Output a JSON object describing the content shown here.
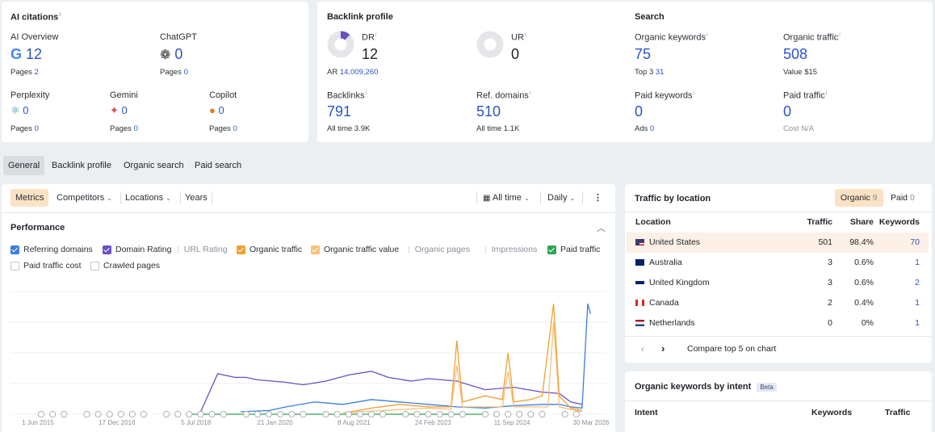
{
  "ai_citations": {
    "title": "AI citations",
    "ai_overview": {
      "label": "AI Overview",
      "value": "12",
      "sub_label": "Pages",
      "sub_value": "2"
    },
    "chatgpt": {
      "label": "ChatGPT",
      "value": "0",
      "sub_label": "Pages",
      "sub_value": "0"
    },
    "perplexity": {
      "label": "Perplexity",
      "value": "0",
      "sub_label": "Pages",
      "sub_value": "0"
    },
    "gemini": {
      "label": "Gemini",
      "value": "0",
      "sub_label": "Pages",
      "sub_value": "0"
    },
    "copilot": {
      "label": "Copilot",
      "value": "0",
      "sub_label": "Pages",
      "sub_value": "0"
    }
  },
  "backlink_profile": {
    "title": "Backlink profile",
    "dr": {
      "label": "DR",
      "value": "12",
      "sub_label": "AR",
      "sub_value": "14,009,260",
      "fill": 0.12
    },
    "ur": {
      "label": "UR",
      "value": "0",
      "fill": 0
    },
    "backlinks": {
      "label": "Backlinks",
      "value": "791",
      "sub_label": "All time",
      "sub_value": "3.9K"
    },
    "ref_domains": {
      "label": "Ref. domains",
      "value": "510",
      "sub_label": "All time",
      "sub_value": "1.1K"
    }
  },
  "search": {
    "title": "Search",
    "organic_keywords": {
      "label": "Organic keywords",
      "value": "75",
      "sub_label": "Top 3",
      "sub_value": "31"
    },
    "organic_traffic": {
      "label": "Organic traffic",
      "value": "508",
      "sub_label": "Value",
      "sub_value": "$15"
    },
    "paid_keywords": {
      "label": "Paid keywords",
      "value": "0",
      "sub_label": "Ads",
      "sub_value": "0"
    },
    "paid_traffic": {
      "label": "Paid traffic",
      "value": "0",
      "sub_label": "Cost",
      "sub_value": "N/A"
    }
  },
  "tabs": [
    "General",
    "Backlink profile",
    "Organic search",
    "Paid search"
  ],
  "toolbar": {
    "metrics": "Metrics",
    "competitors": "Competitors",
    "locations": "Locations",
    "years": "Years",
    "all_time": "All time",
    "daily": "Daily"
  },
  "performance": {
    "title": "Performance",
    "checkboxes": [
      {
        "label": "Referring domains",
        "checked": true,
        "color": "#3d7ee0"
      },
      {
        "label": "Domain Rating",
        "checked": true,
        "color": "#6a4fc4"
      },
      {
        "label": "URL Rating",
        "checked": false,
        "color": ""
      },
      {
        "label": "Organic traffic",
        "checked": true,
        "color": "#f0a030"
      },
      {
        "label": "Organic traffic value",
        "checked": true,
        "color": "#f5c07a"
      },
      {
        "label": "Organic pages",
        "checked": false,
        "color": ""
      },
      {
        "label": "Impressions",
        "checked": false,
        "color": ""
      },
      {
        "label": "Paid traffic",
        "checked": true,
        "color": "#2fa44f"
      },
      {
        "label": "Paid traffic cost",
        "checked": false,
        "color": ""
      },
      {
        "label": "Crawled pages",
        "checked": false,
        "color": ""
      }
    ]
  },
  "chart_data": {
    "type": "line",
    "x_ticks": [
      "1 Jun 2015",
      "17 Dec 2016",
      "5 Jul 2018",
      "21 Jan 2020",
      "8 Aug 2021",
      "24 Feb 2023",
      "11 Sep 2024",
      "30 Mar 2026"
    ],
    "series": [
      {
        "name": "Referring domains",
        "color": "#3d7ee0",
        "points": [
          [
            0.37,
            0.02
          ],
          [
            0.42,
            0.03
          ],
          [
            0.45,
            0.06
          ],
          [
            0.5,
            0.1
          ],
          [
            0.55,
            0.08
          ],
          [
            0.6,
            0.12
          ],
          [
            0.65,
            0.1
          ],
          [
            0.7,
            0.08
          ],
          [
            0.75,
            0.06
          ],
          [
            0.8,
            0.05
          ],
          [
            0.85,
            0.07
          ],
          [
            0.9,
            0.08
          ],
          [
            0.93,
            0.08
          ],
          [
            0.95,
            0.06
          ],
          [
            0.97,
            0.05
          ],
          [
            0.98,
            0.9
          ],
          [
            0.985,
            0.82
          ]
        ]
      },
      {
        "name": "Domain Rating",
        "color": "#6a4fc4",
        "points": [
          [
            0.3,
            0.02
          ],
          [
            0.33,
            0.33
          ],
          [
            0.36,
            0.3
          ],
          [
            0.38,
            0.3
          ],
          [
            0.4,
            0.28
          ],
          [
            0.45,
            0.26
          ],
          [
            0.48,
            0.24
          ],
          [
            0.52,
            0.27
          ],
          [
            0.56,
            0.32
          ],
          [
            0.6,
            0.35
          ],
          [
            0.63,
            0.3
          ],
          [
            0.67,
            0.27
          ],
          [
            0.7,
            0.29
          ],
          [
            0.75,
            0.27
          ],
          [
            0.8,
            0.2
          ],
          [
            0.85,
            0.22
          ],
          [
            0.9,
            0.18
          ],
          [
            0.93,
            0.17
          ],
          [
            0.95,
            0.1
          ],
          [
            0.97,
            0.08
          ]
        ]
      },
      {
        "name": "Organic traffic",
        "color": "#f0a030",
        "points": [
          [
            0.55,
            0.01
          ],
          [
            0.6,
            0.05
          ],
          [
            0.65,
            0.08
          ],
          [
            0.7,
            0.06
          ],
          [
            0.74,
            0.06
          ],
          [
            0.75,
            0.6
          ],
          [
            0.76,
            0.1
          ],
          [
            0.8,
            0.15
          ],
          [
            0.83,
            0.12
          ],
          [
            0.84,
            0.5
          ],
          [
            0.85,
            0.1
          ],
          [
            0.88,
            0.12
          ],
          [
            0.9,
            0.15
          ],
          [
            0.92,
            0.9
          ],
          [
            0.93,
            0.15
          ],
          [
            0.95,
            0.05
          ],
          [
            0.97,
            0.03
          ]
        ]
      },
      {
        "name": "Organic traffic value",
        "color": "#f5c07a",
        "points": [
          [
            0.55,
            0.01
          ],
          [
            0.62,
            0.03
          ],
          [
            0.7,
            0.05
          ],
          [
            0.74,
            0.04
          ],
          [
            0.75,
            0.4
          ],
          [
            0.76,
            0.06
          ],
          [
            0.83,
            0.06
          ],
          [
            0.84,
            0.35
          ],
          [
            0.85,
            0.06
          ],
          [
            0.91,
            0.06
          ],
          [
            0.92,
            0.75
          ],
          [
            0.93,
            0.06
          ],
          [
            0.97,
            0.02
          ]
        ]
      },
      {
        "name": "Paid traffic",
        "color": "#2fa44f",
        "points": [
          [
            0.28,
            0.0
          ],
          [
            0.8,
            0.0
          ]
        ]
      }
    ]
  },
  "traffic_by_location": {
    "title": "Traffic by location",
    "organic_label": "Organic",
    "organic_count": "9",
    "paid_label": "Paid",
    "paid_count": "0",
    "headers": [
      "Location",
      "Traffic",
      "Share",
      "Keywords"
    ],
    "rows": [
      {
        "location": "United States",
        "traffic": "501",
        "share": "98.4%",
        "keywords": "70",
        "flag": "us"
      },
      {
        "location": "Australia",
        "traffic": "3",
        "share": "0.6%",
        "keywords": "1",
        "flag": "au"
      },
      {
        "location": "United Kingdom",
        "traffic": "3",
        "share": "0.6%",
        "keywords": "2",
        "flag": "gb"
      },
      {
        "location": "Canada",
        "traffic": "2",
        "share": "0.4%",
        "keywords": "1",
        "flag": "ca"
      },
      {
        "location": "Netherlands",
        "traffic": "0",
        "share": "0%",
        "keywords": "1",
        "flag": "nl"
      }
    ],
    "compare_label": "Compare top 5 on chart"
  },
  "keywords_by_intent": {
    "title": "Organic keywords by intent",
    "badge": "Beta",
    "headers": [
      "Intent",
      "Keywords",
      "Traffic"
    ]
  }
}
